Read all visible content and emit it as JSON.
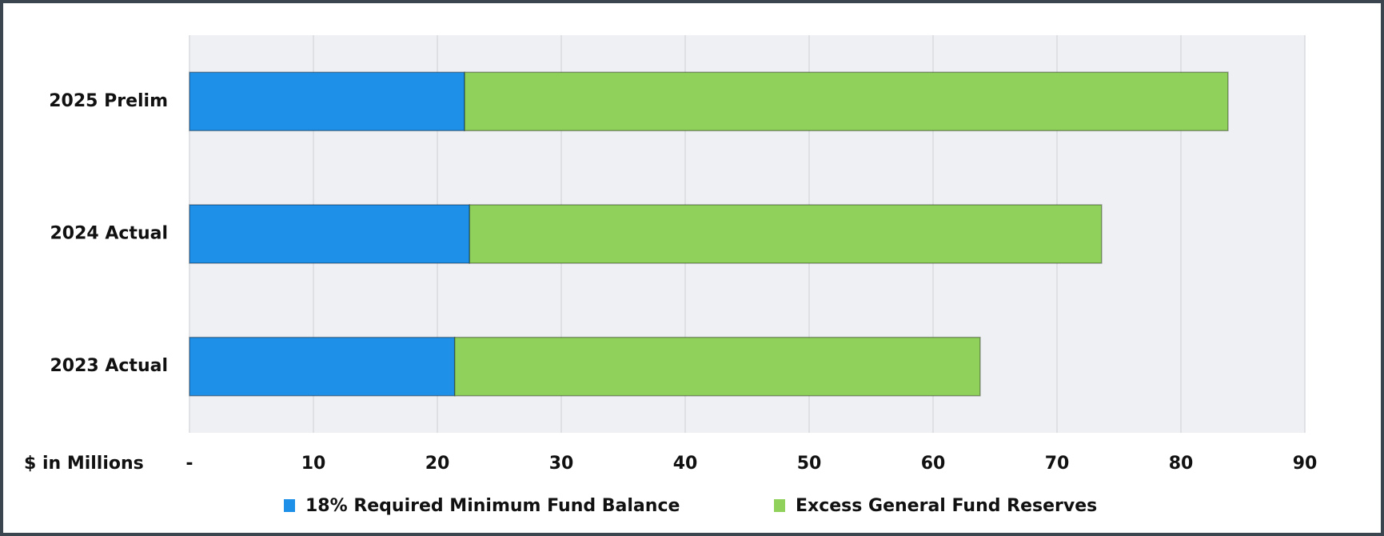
{
  "chart_data": {
    "type": "bar",
    "orientation": "horizontal",
    "stacked": true,
    "categories": [
      "2025 Prelim",
      "2024 Actual",
      "2023 Actual"
    ],
    "series": [
      {
        "name": "18% Required Minimum Fund Balance",
        "color": "#1e90e8",
        "values": [
          22.2,
          22.6,
          21.4
        ]
      },
      {
        "name": "Excess General Fund Reserves",
        "color": "#8fd15a",
        "values": [
          61.6,
          51.0,
          42.4
        ]
      }
    ],
    "xlabel": "$ in Millions",
    "xlim": [
      0,
      90
    ],
    "xticks": [
      {
        "value": 0,
        "label": "-"
      },
      10,
      20,
      30,
      40,
      50,
      60,
      70,
      80,
      90
    ],
    "grid": true,
    "legend": "bottom"
  }
}
